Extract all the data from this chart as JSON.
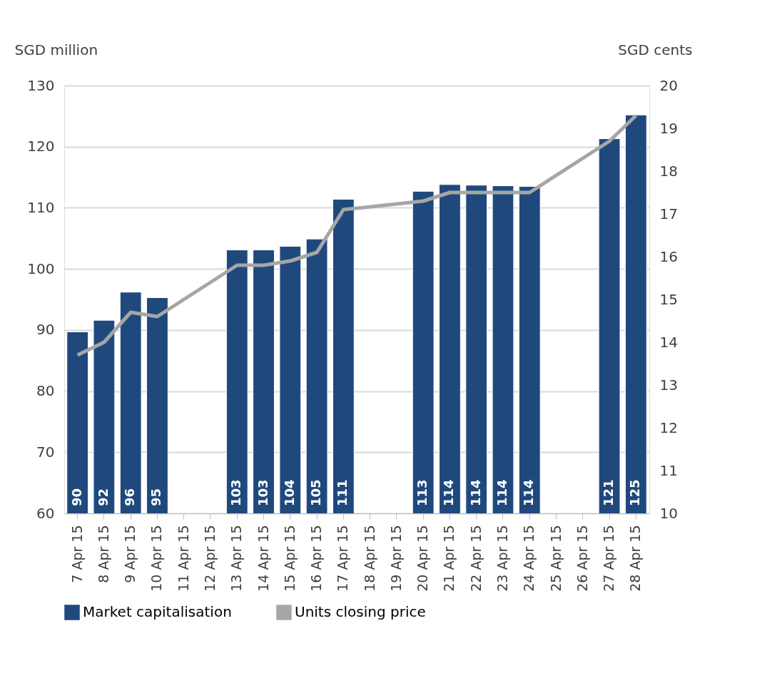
{
  "chart_data": {
    "type": "bar",
    "categories": [
      "7 Apr 15",
      "8 Apr 15",
      "9 Apr 15",
      "10 Apr 15",
      "11 Apr 15",
      "12 Apr 15",
      "13 Apr 15",
      "14 Apr 15",
      "15 Apr 15",
      "16 Apr 15",
      "17 Apr 15",
      "18 Apr 15",
      "19 Apr 15",
      "20 Apr 15",
      "21 Apr 15",
      "22 Apr 15",
      "23 Apr 15",
      "24 Apr 15",
      "25 Apr 15",
      "26 Apr 15",
      "27 Apr 15",
      "28 Apr 15"
    ],
    "ylabel": "SGD million",
    "y2label": "SGD cents",
    "series": [
      {
        "name": "Market capitalisation",
        "color": "#1f497d",
        "values": [
          89.7,
          91.6,
          96.2,
          95.3,
          null,
          null,
          103.1,
          103.1,
          103.7,
          104.9,
          111.4,
          null,
          null,
          112.7,
          113.8,
          113.7,
          113.6,
          113.5,
          null,
          null,
          121.3,
          125.2
        ],
        "value_labels": [
          "90",
          "92",
          "96",
          "95",
          null,
          null,
          "103",
          "103",
          "104",
          "105",
          "111",
          null,
          null,
          "113",
          "114",
          "114",
          "114",
          "114",
          null,
          null,
          "121",
          "125"
        ]
      },
      {
        "name": "Units closing price",
        "type": "line",
        "axis": "y2",
        "color": "#a6a6a6",
        "values": [
          13.7,
          14.0,
          14.7,
          14.6,
          null,
          null,
          15.8,
          15.8,
          15.9,
          16.1,
          17.1,
          null,
          null,
          17.3,
          17.5,
          17.5,
          17.5,
          17.5,
          null,
          null,
          18.7,
          19.3
        ]
      }
    ],
    "ylim": [
      60,
      130
    ],
    "yticks": [
      60,
      70,
      80,
      90,
      100,
      110,
      120,
      130
    ],
    "y2lim": [
      10,
      20
    ],
    "y2ticks": [
      10,
      11,
      12,
      13,
      14,
      15,
      16,
      17,
      18,
      19,
      20
    ],
    "grid": "y",
    "legend": "bottom",
    "marker": "none",
    "line_style": "solid"
  }
}
